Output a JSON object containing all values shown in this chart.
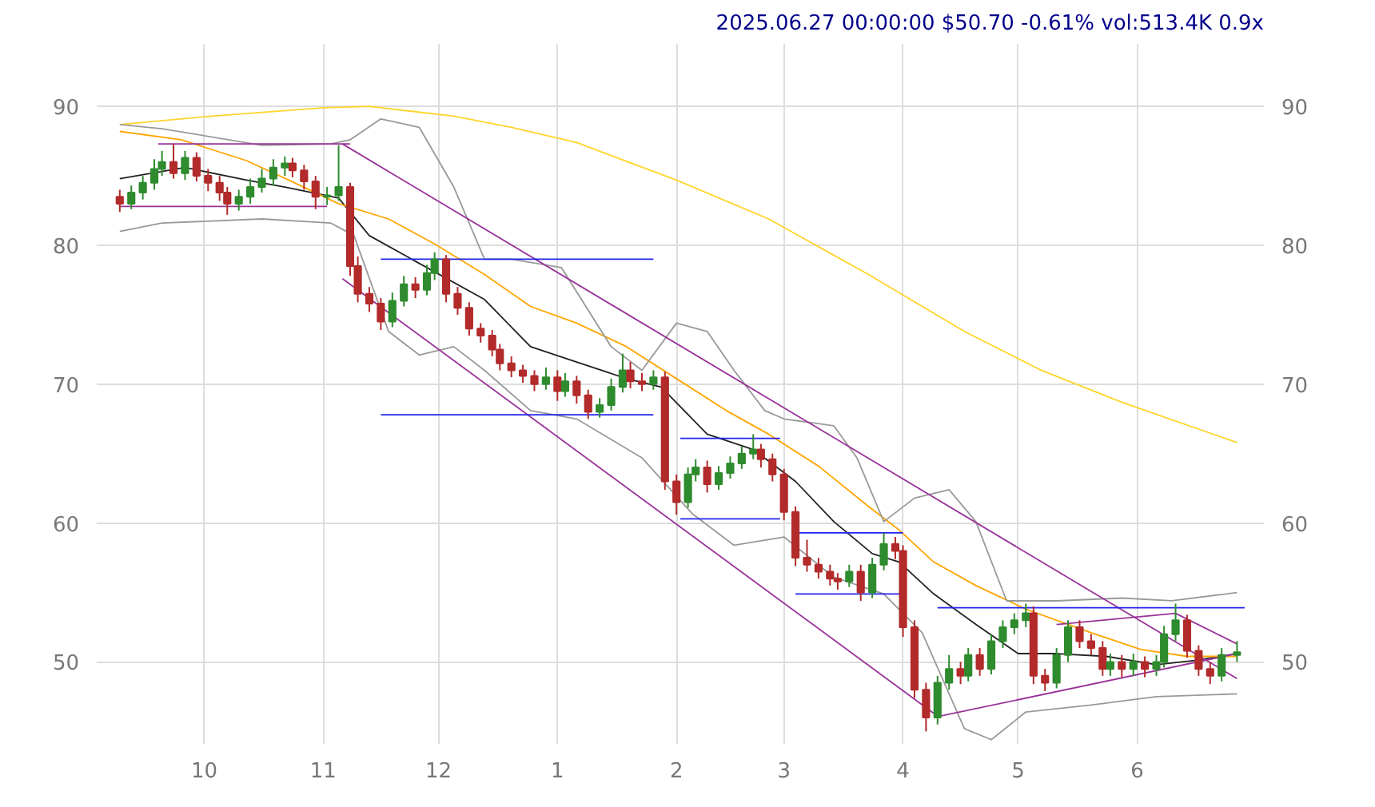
{
  "chart_data": {
    "type": "candlestick",
    "title": "2025.06.27 00:00:00 $50.70 -0.61% vol:513.4K 0.9x",
    "x": [
      "2024-09-09",
      "2024-09-12",
      "2024-09-15",
      "2024-09-18",
      "2024-09-20",
      "2024-09-23",
      "2024-09-26",
      "2024-09-29",
      "2024-10-02",
      "2024-10-05",
      "2024-10-07",
      "2024-10-10",
      "2024-10-13",
      "2024-10-16",
      "2024-10-19",
      "2024-10-22",
      "2024-10-24",
      "2024-10-27",
      "2024-10-30",
      "2024-11-02",
      "2024-11-05",
      "2024-11-08",
      "2024-11-10",
      "2024-11-13",
      "2024-11-16",
      "2024-11-19",
      "2024-11-22",
      "2024-11-25",
      "2024-11-28",
      "2024-11-30",
      "2024-12-03",
      "2024-12-06",
      "2024-12-09",
      "2024-12-12",
      "2024-12-15",
      "2024-12-17",
      "2024-12-20",
      "2024-12-23",
      "2024-12-26",
      "2024-12-29",
      "2025-01-01",
      "2025-01-03",
      "2025-01-06",
      "2025-01-09",
      "2025-01-12",
      "2025-01-15",
      "2025-01-18",
      "2025-01-20",
      "2025-01-23",
      "2025-01-26",
      "2025-01-29",
      "2025-02-01",
      "2025-02-04",
      "2025-02-06",
      "2025-02-09",
      "2025-02-12",
      "2025-02-15",
      "2025-02-18",
      "2025-02-21",
      "2025-02-23",
      "2025-02-26",
      "2025-03-01",
      "2025-03-04",
      "2025-03-07",
      "2025-03-10",
      "2025-03-13",
      "2025-03-15",
      "2025-03-18",
      "2025-03-21",
      "2025-03-24",
      "2025-03-27",
      "2025-03-30",
      "2025-04-01",
      "2025-04-04",
      "2025-04-07",
      "2025-04-10",
      "2025-04-13",
      "2025-04-16",
      "2025-04-18",
      "2025-04-21",
      "2025-04-24",
      "2025-04-27",
      "2025-04-30",
      "2025-05-03",
      "2025-05-05",
      "2025-05-08",
      "2025-05-11",
      "2025-05-14",
      "2025-05-17",
      "2025-05-20",
      "2025-05-23",
      "2025-05-25",
      "2025-05-28",
      "2025-05-31",
      "2025-06-03",
      "2025-06-06",
      "2025-06-08",
      "2025-06-11",
      "2025-06-14",
      "2025-06-17",
      "2025-06-20",
      "2025-06-23",
      "2025-06-27"
    ],
    "ohlc": [
      [
        83.5,
        84.0,
        82.4,
        83.0
      ],
      [
        83.0,
        84.3,
        82.6,
        83.8
      ],
      [
        83.8,
        85.0,
        83.3,
        84.5
      ],
      [
        84.5,
        86.2,
        84.0,
        85.5
      ],
      [
        85.5,
        86.8,
        85.0,
        86.0
      ],
      [
        86.0,
        87.3,
        84.8,
        85.2
      ],
      [
        85.2,
        86.8,
        84.7,
        86.3
      ],
      [
        86.3,
        86.7,
        84.6,
        85.0
      ],
      [
        85.0,
        85.5,
        83.9,
        84.5
      ],
      [
        84.5,
        85.0,
        83.2,
        83.8
      ],
      [
        83.8,
        84.2,
        82.2,
        83.0
      ],
      [
        83.0,
        84.0,
        82.5,
        83.5
      ],
      [
        83.5,
        84.8,
        83.0,
        84.2
      ],
      [
        84.2,
        85.5,
        83.8,
        84.8
      ],
      [
        84.8,
        86.2,
        84.3,
        85.6
      ],
      [
        85.6,
        86.4,
        85.0,
        85.9
      ],
      [
        85.9,
        86.3,
        84.9,
        85.4
      ],
      [
        85.4,
        85.8,
        84.0,
        84.6
      ],
      [
        84.6,
        85.0,
        82.6,
        83.5
      ],
      [
        83.5,
        84.2,
        82.9,
        83.6
      ],
      [
        83.6,
        87.2,
        83.2,
        84.2
      ],
      [
        84.2,
        84.5,
        77.8,
        78.5
      ],
      [
        78.5,
        79.2,
        75.9,
        76.5
      ],
      [
        76.5,
        77.0,
        75.2,
        75.8
      ],
      [
        75.8,
        76.2,
        73.9,
        74.5
      ],
      [
        74.5,
        76.6,
        74.1,
        76.0
      ],
      [
        76.0,
        77.8,
        75.6,
        77.2
      ],
      [
        77.2,
        77.7,
        76.2,
        76.8
      ],
      [
        76.8,
        78.6,
        76.4,
        78.0
      ],
      [
        78.0,
        79.5,
        77.5,
        79.0
      ],
      [
        79.0,
        79.3,
        75.9,
        76.5
      ],
      [
        76.5,
        77.0,
        75.0,
        75.5
      ],
      [
        75.5,
        75.9,
        73.5,
        74.0
      ],
      [
        74.0,
        74.4,
        73.0,
        73.5
      ],
      [
        73.5,
        73.9,
        72.0,
        72.5
      ],
      [
        72.5,
        72.9,
        71.0,
        71.5
      ],
      [
        71.5,
        72.0,
        70.5,
        71.0
      ],
      [
        71.0,
        71.4,
        70.1,
        70.6
      ],
      [
        70.6,
        71.0,
        69.5,
        70.0
      ],
      [
        70.0,
        71.2,
        69.6,
        70.5
      ],
      [
        70.5,
        71.0,
        68.8,
        69.5
      ],
      [
        69.5,
        70.8,
        69.1,
        70.2
      ],
      [
        70.2,
        70.6,
        68.6,
        69.2
      ],
      [
        69.2,
        69.6,
        67.5,
        68.0
      ],
      [
        68.0,
        69.0,
        67.6,
        68.5
      ],
      [
        68.5,
        70.4,
        68.1,
        69.8
      ],
      [
        69.8,
        72.2,
        69.4,
        71.0
      ],
      [
        71.0,
        71.6,
        69.7,
        70.2
      ],
      [
        70.2,
        70.8,
        69.5,
        70.0
      ],
      [
        70.0,
        71.0,
        69.6,
        70.5
      ],
      [
        70.5,
        70.9,
        62.4,
        63.0
      ],
      [
        63.0,
        63.5,
        60.6,
        61.5
      ],
      [
        61.5,
        64.0,
        61.1,
        63.5
      ],
      [
        63.5,
        64.6,
        63.0,
        64.0
      ],
      [
        64.0,
        64.5,
        62.2,
        62.8
      ],
      [
        62.8,
        64.1,
        62.4,
        63.6
      ],
      [
        63.6,
        64.8,
        63.2,
        64.3
      ],
      [
        64.3,
        65.5,
        63.9,
        65.0
      ],
      [
        65.0,
        66.4,
        64.6,
        65.3
      ],
      [
        65.3,
        65.7,
        64.0,
        64.6
      ],
      [
        64.6,
        65.0,
        63.0,
        63.5
      ],
      [
        63.5,
        63.9,
        60.2,
        60.8
      ],
      [
        60.8,
        61.2,
        56.9,
        57.5
      ],
      [
        57.5,
        58.8,
        56.5,
        57.0
      ],
      [
        57.0,
        57.5,
        56.0,
        56.5
      ],
      [
        56.5,
        57.0,
        55.5,
        56.0
      ],
      [
        56.0,
        56.4,
        55.2,
        55.8
      ],
      [
        55.8,
        57.0,
        55.4,
        56.5
      ],
      [
        56.5,
        57.0,
        54.4,
        55.0
      ],
      [
        55.0,
        57.5,
        54.6,
        57.0
      ],
      [
        57.0,
        59.3,
        56.6,
        58.5
      ],
      [
        58.5,
        59.0,
        57.4,
        58.0
      ],
      [
        58.0,
        58.4,
        51.8,
        52.5
      ],
      [
        52.5,
        53.0,
        47.4,
        48.0
      ],
      [
        48.0,
        48.5,
        45.0,
        46.0
      ],
      [
        46.0,
        49.0,
        45.5,
        48.5
      ],
      [
        48.5,
        50.5,
        48.0,
        49.5
      ],
      [
        49.5,
        50.0,
        48.4,
        49.0
      ],
      [
        49.0,
        51.0,
        48.6,
        50.5
      ],
      [
        50.5,
        51.0,
        49.0,
        49.5
      ],
      [
        49.5,
        52.0,
        49.1,
        51.5
      ],
      [
        51.5,
        53.0,
        51.0,
        52.5
      ],
      [
        52.5,
        53.5,
        52.0,
        53.0
      ],
      [
        53.0,
        54.2,
        52.5,
        53.5
      ],
      [
        53.5,
        54.0,
        48.4,
        49.0
      ],
      [
        49.0,
        49.5,
        47.9,
        48.5
      ],
      [
        48.5,
        51.0,
        48.1,
        50.5
      ],
      [
        50.5,
        53.0,
        50.0,
        52.5
      ],
      [
        52.5,
        53.0,
        51.0,
        51.5
      ],
      [
        51.5,
        52.0,
        50.5,
        51.0
      ],
      [
        51.0,
        51.5,
        49.0,
        49.5
      ],
      [
        49.5,
        50.6,
        49.0,
        50.0
      ],
      [
        50.0,
        50.5,
        48.9,
        49.5
      ],
      [
        49.5,
        50.6,
        49.0,
        50.0
      ],
      [
        50.0,
        50.4,
        48.9,
        49.5
      ],
      [
        49.5,
        50.5,
        49.0,
        50.0
      ],
      [
        50.0,
        52.6,
        49.6,
        52.0
      ],
      [
        52.0,
        54.2,
        51.5,
        53.0
      ],
      [
        53.0,
        53.4,
        50.3,
        50.8
      ],
      [
        50.8,
        51.2,
        49.0,
        49.5
      ],
      [
        49.5,
        50.0,
        48.4,
        49.0
      ],
      [
        49.0,
        51.0,
        48.6,
        50.5
      ],
      [
        50.5,
        51.5,
        50.0,
        50.7
      ]
    ],
    "series": [
      {
        "type": "line",
        "color": "#222222",
        "x": [
          "2024-09-09",
          "2024-09-26",
          "2024-10-12",
          "2024-10-22",
          "2024-11-05",
          "2024-11-13",
          "2024-11-26",
          "2024-12-13",
          "2024-12-25",
          "2025-01-06",
          "2025-01-19",
          "2025-01-28",
          "2025-02-09",
          "2025-02-21",
          "2025-03-04",
          "2025-03-14",
          "2025-03-24",
          "2025-03-31",
          "2025-04-09",
          "2025-04-20",
          "2025-05-01",
          "2025-05-11",
          "2025-05-24",
          "2025-06-06",
          "2025-06-16",
          "2025-06-27"
        ],
        "values": [
          84.8,
          85.6,
          84.7,
          84.2,
          83.4,
          80.7,
          78.7,
          76.1,
          72.7,
          71.6,
          70.4,
          69.8,
          66.4,
          65.3,
          63.0,
          60.1,
          57.8,
          57.2,
          54.9,
          52.7,
          50.6,
          50.6,
          50.4,
          49.8,
          50.1,
          50.6
        ]
      },
      {
        "type": "line",
        "color": "#ffa500",
        "x": [
          "2024-09-09",
          "2024-09-25",
          "2024-10-12",
          "2024-10-23",
          "2024-11-05",
          "2024-11-18",
          "2024-11-30",
          "2024-12-13",
          "2024-12-25",
          "2025-01-06",
          "2025-01-19",
          "2025-02-01",
          "2025-02-14",
          "2025-02-25",
          "2025-03-10",
          "2025-03-23",
          "2025-03-31",
          "2025-04-09",
          "2025-04-20",
          "2025-05-03",
          "2025-05-20",
          "2025-06-02",
          "2025-06-14",
          "2025-06-27"
        ],
        "values": [
          88.2,
          87.6,
          86.1,
          84.7,
          83.0,
          81.9,
          80.1,
          77.9,
          75.6,
          74.4,
          72.7,
          70.4,
          68.1,
          66.4,
          64.1,
          61.2,
          59.5,
          57.2,
          55.5,
          53.8,
          52.1,
          50.9,
          50.4,
          50.4
        ]
      },
      {
        "type": "line",
        "color": "#ffd42a",
        "x": [
          "2024-09-09",
          "2024-10-03",
          "2024-11-01",
          "2024-11-13",
          "2024-12-05",
          "2024-12-20",
          "2025-01-06",
          "2025-02-01",
          "2025-02-25",
          "2025-03-23",
          "2025-04-17",
          "2025-05-07",
          "2025-05-28",
          "2025-06-27"
        ],
        "values": [
          88.7,
          89.3,
          89.9,
          90.0,
          89.3,
          88.5,
          87.4,
          84.7,
          81.9,
          77.9,
          73.8,
          71.0,
          68.7,
          65.8
        ]
      },
      {
        "type": "line",
        "color": "#999999",
        "x": [
          "2024-09-09",
          "2024-09-20",
          "2024-10-16",
          "2024-11-03",
          "2024-11-08",
          "2024-11-16",
          "2024-11-26",
          "2024-12-05",
          "2024-12-13",
          "2024-12-20",
          "2025-01-02",
          "2025-01-15",
          "2025-01-23",
          "2025-02-01",
          "2025-02-09",
          "2025-02-16",
          "2025-02-24",
          "2025-03-01",
          "2025-03-14",
          "2025-03-20",
          "2025-03-27",
          "2025-04-04",
          "2025-04-13",
          "2025-04-20",
          "2025-04-28",
          "2025-05-11",
          "2025-05-28",
          "2025-06-10",
          "2025-06-27"
        ],
        "values": [
          88.7,
          88.4,
          87.2,
          87.3,
          87.6,
          89.1,
          88.5,
          84.2,
          79.0,
          79.0,
          78.4,
          72.7,
          71.0,
          74.4,
          73.8,
          71.0,
          68.1,
          67.5,
          67.0,
          64.7,
          60.1,
          61.8,
          62.4,
          60.1,
          54.4,
          54.4,
          54.6,
          54.4,
          55.0
        ]
      },
      {
        "type": "line",
        "color": "#999999",
        "x": [
          "2024-09-09",
          "2024-09-20",
          "2024-10-16",
          "2024-11-03",
          "2024-11-09",
          "2024-11-18",
          "2024-11-26",
          "2024-12-05",
          "2024-12-13",
          "2024-12-25",
          "2025-01-06",
          "2025-01-23",
          "2025-02-05",
          "2025-02-16",
          "2025-03-01",
          "2025-03-14",
          "2025-03-27",
          "2025-04-06",
          "2025-04-17",
          "2025-04-24",
          "2025-05-03",
          "2025-05-20",
          "2025-06-06",
          "2025-06-27"
        ],
        "values": [
          81.0,
          81.6,
          81.9,
          81.6,
          80.7,
          73.8,
          72.1,
          72.7,
          71.0,
          68.1,
          67.5,
          64.7,
          60.7,
          58.4,
          59.0,
          56.1,
          54.9,
          52.1,
          45.2,
          44.4,
          46.4,
          46.9,
          47.5,
          47.7
        ]
      },
      {
        "type": "line",
        "color": "#993399",
        "x": [
          "2024-11-06",
          "2025-06-27"
        ],
        "values": [
          87.3,
          48.8
        ]
      },
      {
        "type": "line",
        "color": "#993399",
        "x": [
          "2024-11-06",
          "2025-04-10"
        ],
        "values": [
          77.6,
          46.1
        ]
      },
      {
        "type": "line",
        "color": "#993399",
        "x": [
          "2025-04-09",
          "2025-06-27"
        ],
        "values": [
          46.0,
          50.6
        ]
      },
      {
        "type": "line",
        "color": "#993399",
        "x": [
          "2024-09-19",
          "2024-11-08"
        ],
        "values": [
          87.3,
          87.3
        ]
      },
      {
        "type": "line",
        "color": "#993399",
        "x": [
          "2024-09-09",
          "2024-11-02"
        ],
        "values": [
          82.8,
          82.8
        ]
      },
      {
        "type": "line",
        "color": "#993399",
        "x": [
          "2025-05-11",
          "2025-06-11",
          "2025-06-27"
        ],
        "values": [
          52.7,
          53.5,
          51.3
        ]
      },
      {
        "type": "line",
        "color": "#2222ee",
        "x": [
          "2024-11-16",
          "2025-01-26"
        ],
        "values": [
          79.0,
          79.0
        ]
      },
      {
        "type": "line",
        "color": "#2222ee",
        "x": [
          "2024-11-16",
          "2025-01-26"
        ],
        "values": [
          67.8,
          67.8
        ]
      },
      {
        "type": "line",
        "color": "#2222ee",
        "x": [
          "2025-02-02",
          "2025-02-28"
        ],
        "values": [
          66.1,
          66.1
        ]
      },
      {
        "type": "line",
        "color": "#2222ee",
        "x": [
          "2025-02-02",
          "2025-02-28"
        ],
        "values": [
          60.3,
          60.3
        ]
      },
      {
        "type": "line",
        "color": "#2222ee",
        "x": [
          "2025-03-04",
          "2025-04-01"
        ],
        "values": [
          59.3,
          59.3
        ]
      },
      {
        "type": "line",
        "color": "#2222ee",
        "x": [
          "2025-03-04",
          "2025-04-01"
        ],
        "values": [
          54.9,
          54.9
        ]
      },
      {
        "type": "line",
        "color": "#2222ee",
        "x": [
          "2025-04-10",
          "2025-06-29"
        ],
        "values": [
          53.9,
          53.9
        ]
      }
    ],
    "xlim": [
      "2024-09-03",
      "2025-07-04"
    ],
    "xticks": [
      {
        "value": "2024-10-01",
        "label": "10"
      },
      {
        "value": "2024-11-01",
        "label": "11"
      },
      {
        "value": "2024-12-01",
        "label": "12"
      },
      {
        "value": "2025-01-01",
        "label": "1"
      },
      {
        "value": "2025-02-01",
        "label": "2"
      },
      {
        "value": "2025-03-01",
        "label": "3"
      },
      {
        "value": "2025-04-01",
        "label": "4"
      },
      {
        "value": "2025-05-01",
        "label": "5"
      },
      {
        "value": "2025-06-01",
        "label": "6"
      }
    ],
    "ylim": [
      44.1,
      94.5
    ],
    "yticks": [
      50,
      60,
      70,
      80,
      90
    ],
    "y2lim": [
      44.1,
      94.5
    ],
    "y2ticks": [
      50,
      60,
      70,
      80,
      90
    ],
    "grid": true
  }
}
